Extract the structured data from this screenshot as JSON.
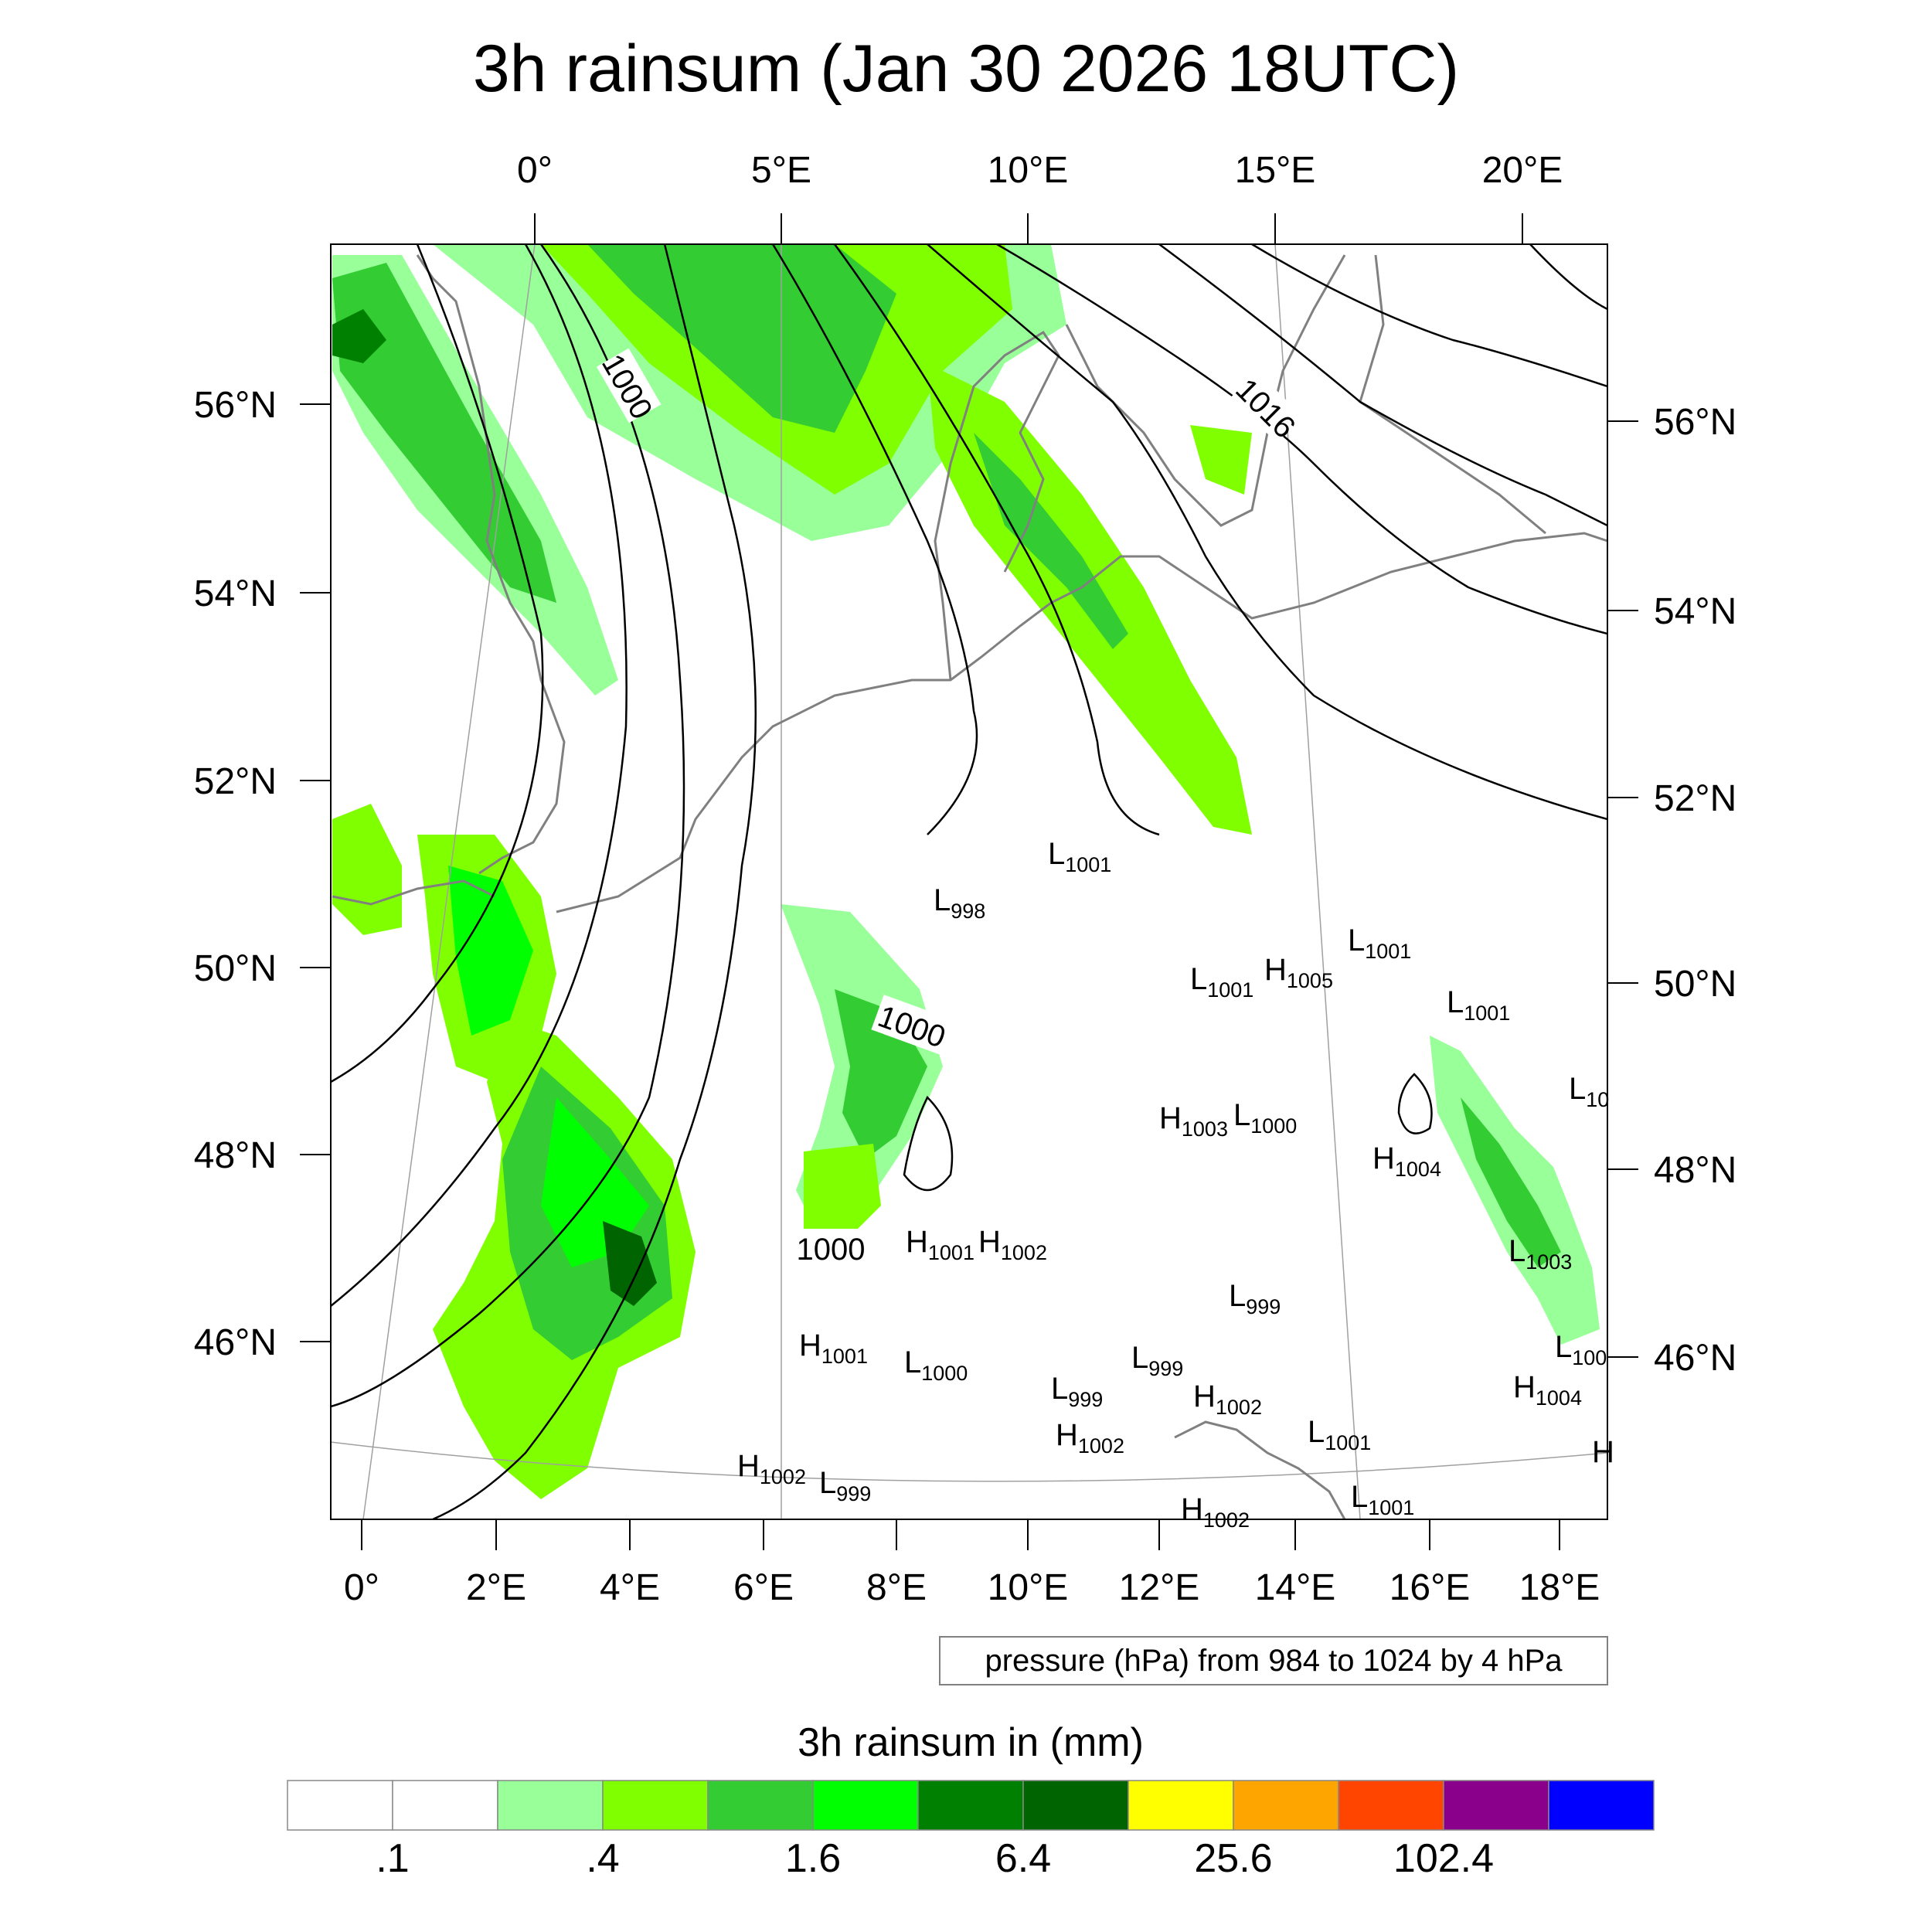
{
  "title": "3h rainsum (Jan 30 2026 18UTC)",
  "top_lon_ticks": [
    "0°",
    "5°E",
    "10°E",
    "15°E",
    "20°E"
  ],
  "bottom_lon_ticks": [
    "0°",
    "2°E",
    "4°E",
    "6°E",
    "8°E",
    "10°E",
    "12°E",
    "14°E",
    "16°E",
    "18°E"
  ],
  "left_lat_ticks": [
    "56°N",
    "54°N",
    "52°N",
    "50°N",
    "48°N",
    "46°N"
  ],
  "right_lat_ticks": [
    "56°N",
    "54°N",
    "52°N",
    "50°N",
    "48°N",
    "46°N"
  ],
  "contour_labels": [
    "1000",
    "1016",
    "1000",
    "1000"
  ],
  "pressure_centers": [
    {
      "letter": "L",
      "value": "1001"
    },
    {
      "letter": "L",
      "value": "998"
    },
    {
      "letter": "L",
      "value": "1001"
    },
    {
      "letter": "L",
      "value": "1001"
    },
    {
      "letter": "H",
      "value": "1005"
    },
    {
      "letter": "L",
      "value": "1001"
    },
    {
      "letter": "L",
      "value": "10"
    },
    {
      "letter": "H",
      "value": "1003"
    },
    {
      "letter": "L",
      "value": "1000"
    },
    {
      "letter": "H",
      "value": "1004"
    },
    {
      "letter": "H",
      "value": "1001"
    },
    {
      "letter": "H",
      "value": "1002"
    },
    {
      "letter": "L",
      "value": "1003"
    },
    {
      "letter": "L",
      "value": "999"
    },
    {
      "letter": "H",
      "value": "1001"
    },
    {
      "letter": "L",
      "value": "1000"
    },
    {
      "letter": "L",
      "value": "999"
    },
    {
      "letter": "L",
      "value": "999"
    },
    {
      "letter": "H",
      "value": "1002"
    },
    {
      "letter": "H",
      "value": "1002"
    },
    {
      "letter": "L",
      "value": "100"
    },
    {
      "letter": "H",
      "value": "1004"
    },
    {
      "letter": "L",
      "value": "1001"
    },
    {
      "letter": "H",
      "value": "1002"
    },
    {
      "letter": "L",
      "value": "999"
    },
    {
      "letter": "L",
      "value": "1001"
    },
    {
      "letter": "H",
      "value": "1002"
    },
    {
      "letter": "H",
      "value": ""
    }
  ],
  "info_box": "pressure (hPa) from 984 to 1024 by 4 hPa",
  "colorbar": {
    "title": "3h rainsum in (mm)",
    "colors": [
      "#ffffff",
      "#ffffff",
      "#99ff99",
      "#80ff00",
      "#33cc33",
      "#00ff00",
      "#008000",
      "#006400",
      "#ffff00",
      "#ffa500",
      "#ff4500",
      "#8b008b",
      "#0000ff"
    ],
    "tick_labels": [
      ".1",
      ".4",
      "1.6",
      "6.4",
      "25.6",
      "102.4"
    ]
  },
  "colors": {
    "contour": "#000000",
    "coastline": "#808080",
    "graticule": "#a0a0a0"
  }
}
